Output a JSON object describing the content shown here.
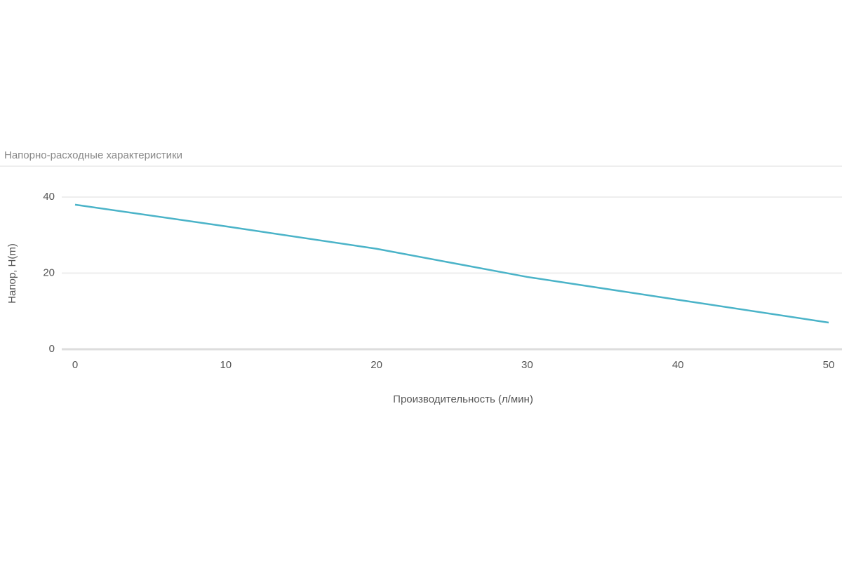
{
  "chart_data": {
    "type": "line",
    "title": "Напорно-расходные характеристики",
    "x_label": "Производительность (л/мин)",
    "y_label": "Напор, H(m)",
    "x": [
      0,
      10,
      20,
      30,
      40,
      50
    ],
    "series": [
      {
        "name": "Напор",
        "color": "#4ab3c8",
        "values": [
          38,
          32.3,
          26.4,
          19,
          13,
          7
        ]
      }
    ],
    "xlim": [
      0,
      50
    ],
    "xticks": [
      0,
      10,
      20,
      30,
      40,
      50
    ],
    "ylim": [
      0,
      40
    ],
    "yticks": [
      0,
      20,
      40
    ],
    "grid": true
  }
}
